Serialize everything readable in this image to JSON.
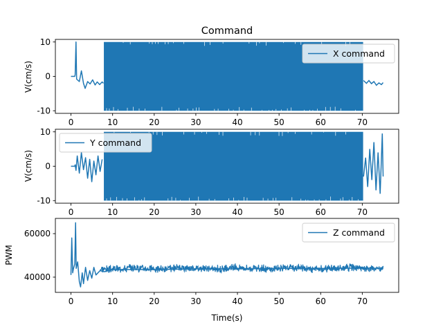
{
  "chart_data": [
    {
      "type": "line",
      "title": "Command",
      "xlabel": "",
      "ylabel": "V(cm/s)",
      "xlim": [
        -3.75,
        78.75
      ],
      "ylim": [
        -10.75,
        10.75
      ],
      "xticks": [
        0,
        10,
        20,
        30,
        40,
        50,
        60,
        70
      ],
      "yticks": [
        -10,
        0,
        10
      ],
      "grid": false,
      "legend": "upper right",
      "color": "#1f77b4",
      "series": [
        {
          "name": "X command",
          "points": [
            [
              0,
              0
            ],
            [
              0.9,
              0
            ],
            [
              1.0,
              0.5
            ],
            [
              1.2,
              10
            ],
            [
              1.35,
              -0.8
            ],
            [
              2,
              -1.5
            ],
            [
              2.5,
              1.6
            ],
            [
              3,
              -2
            ],
            [
              3.4,
              -3.5
            ],
            [
              4,
              -1.5
            ],
            [
              4.6,
              -2.2
            ],
            [
              5.2,
              -1
            ],
            [
              5.8,
              -2.5
            ],
            [
              6.3,
              -1.6
            ],
            [
              6.9,
              -2.4
            ],
            [
              7.5,
              -1.6
            ],
            [
              7.8,
              -2
            ]
          ],
          "saturation_segments": [
            [
              7.9,
              70.2
            ]
          ],
          "saturation_range": [
            -10,
            10
          ],
          "tail": [
            [
              70.3,
              -1.2
            ],
            [
              71,
              -2
            ],
            [
              71.6,
              -1.2
            ],
            [
              72.2,
              -2.1
            ],
            [
              72.8,
              -1.5
            ],
            [
              73.4,
              -2.6
            ],
            [
              74,
              -1.9
            ],
            [
              74.6,
              -2.4
            ],
            [
              75,
              -1.8
            ]
          ]
        }
      ]
    },
    {
      "type": "line",
      "title": "",
      "xlabel": "",
      "ylabel": "V(cm/s)",
      "xlim": [
        -3.75,
        78.75
      ],
      "ylim": [
        -10.75,
        10.75
      ],
      "xticks": [
        0,
        10,
        20,
        30,
        40,
        50,
        60,
        70
      ],
      "yticks": [
        -10,
        0,
        10
      ],
      "grid": false,
      "legend": "upper left",
      "color": "#1f77b4",
      "series": [
        {
          "name": "Y command",
          "points": [
            [
              0,
              0
            ],
            [
              0.9,
              0
            ],
            [
              1.0,
              0.4
            ],
            [
              1.2,
              -1.2
            ],
            [
              1.5,
              3
            ],
            [
              2,
              -2
            ],
            [
              2.5,
              4
            ],
            [
              3,
              -1
            ],
            [
              3.5,
              2.5
            ],
            [
              4,
              -3.5
            ],
            [
              4.5,
              2
            ],
            [
              5,
              -4.5
            ],
            [
              5.5,
              1.5
            ],
            [
              6,
              -2.5
            ],
            [
              6.5,
              3
            ],
            [
              7,
              -1.5
            ],
            [
              7.5,
              2
            ]
          ],
          "saturation_segments": [
            [
              7.9,
              70.2
            ]
          ],
          "saturation_range": [
            -10,
            10
          ],
          "tail": [
            [
              70.3,
              -3
            ],
            [
              70.8,
              2.5
            ],
            [
              71.3,
              -6
            ],
            [
              71.8,
              5
            ],
            [
              72.3,
              -4
            ],
            [
              72.8,
              7
            ],
            [
              73.3,
              -7
            ],
            [
              73.8,
              4
            ],
            [
              74.3,
              -8
            ],
            [
              74.8,
              9.5
            ],
            [
              75,
              -3
            ]
          ]
        }
      ]
    },
    {
      "type": "line",
      "title": "",
      "xlabel": "Time(s)",
      "ylabel": "PWM",
      "xlim": [
        -3.75,
        78.75
      ],
      "ylim": [
        33000,
        67000
      ],
      "xticks": [
        0,
        10,
        20,
        30,
        40,
        50,
        60,
        70
      ],
      "yticks": [
        40000,
        60000
      ],
      "grid": false,
      "legend": "upper right",
      "color": "#1f77b4",
      "series": [
        {
          "name": "Z command",
          "points": [
            [
              0,
              41000
            ],
            [
              0.2,
              58000
            ],
            [
              0.4,
              42000
            ],
            [
              0.6,
              44000
            ],
            [
              0.9,
              46000
            ],
            [
              1.1,
              65000
            ],
            [
              1.25,
              44000
            ],
            [
              1.6,
              47000
            ],
            [
              2,
              38000
            ],
            [
              2.3,
              35500
            ],
            [
              2.7,
              42000
            ],
            [
              3,
              37000
            ],
            [
              3.5,
              44500
            ],
            [
              4,
              38500
            ],
            [
              4.5,
              43000
            ],
            [
              5,
              39500
            ],
            [
              5.5,
              44500
            ],
            [
              6,
              41000
            ],
            [
              7,
              43000
            ],
            [
              8,
              42500
            ],
            [
              10,
              43500
            ],
            [
              20,
              43500
            ],
            [
              30,
              43800
            ],
            [
              40,
              43800
            ],
            [
              50,
              44000
            ],
            [
              60,
              44000
            ],
            [
              70,
              44200
            ],
            [
              75,
              44000
            ]
          ],
          "noise_band": [
            [
              7,
              75,
              41000,
              47000
            ]
          ]
        }
      ]
    }
  ]
}
